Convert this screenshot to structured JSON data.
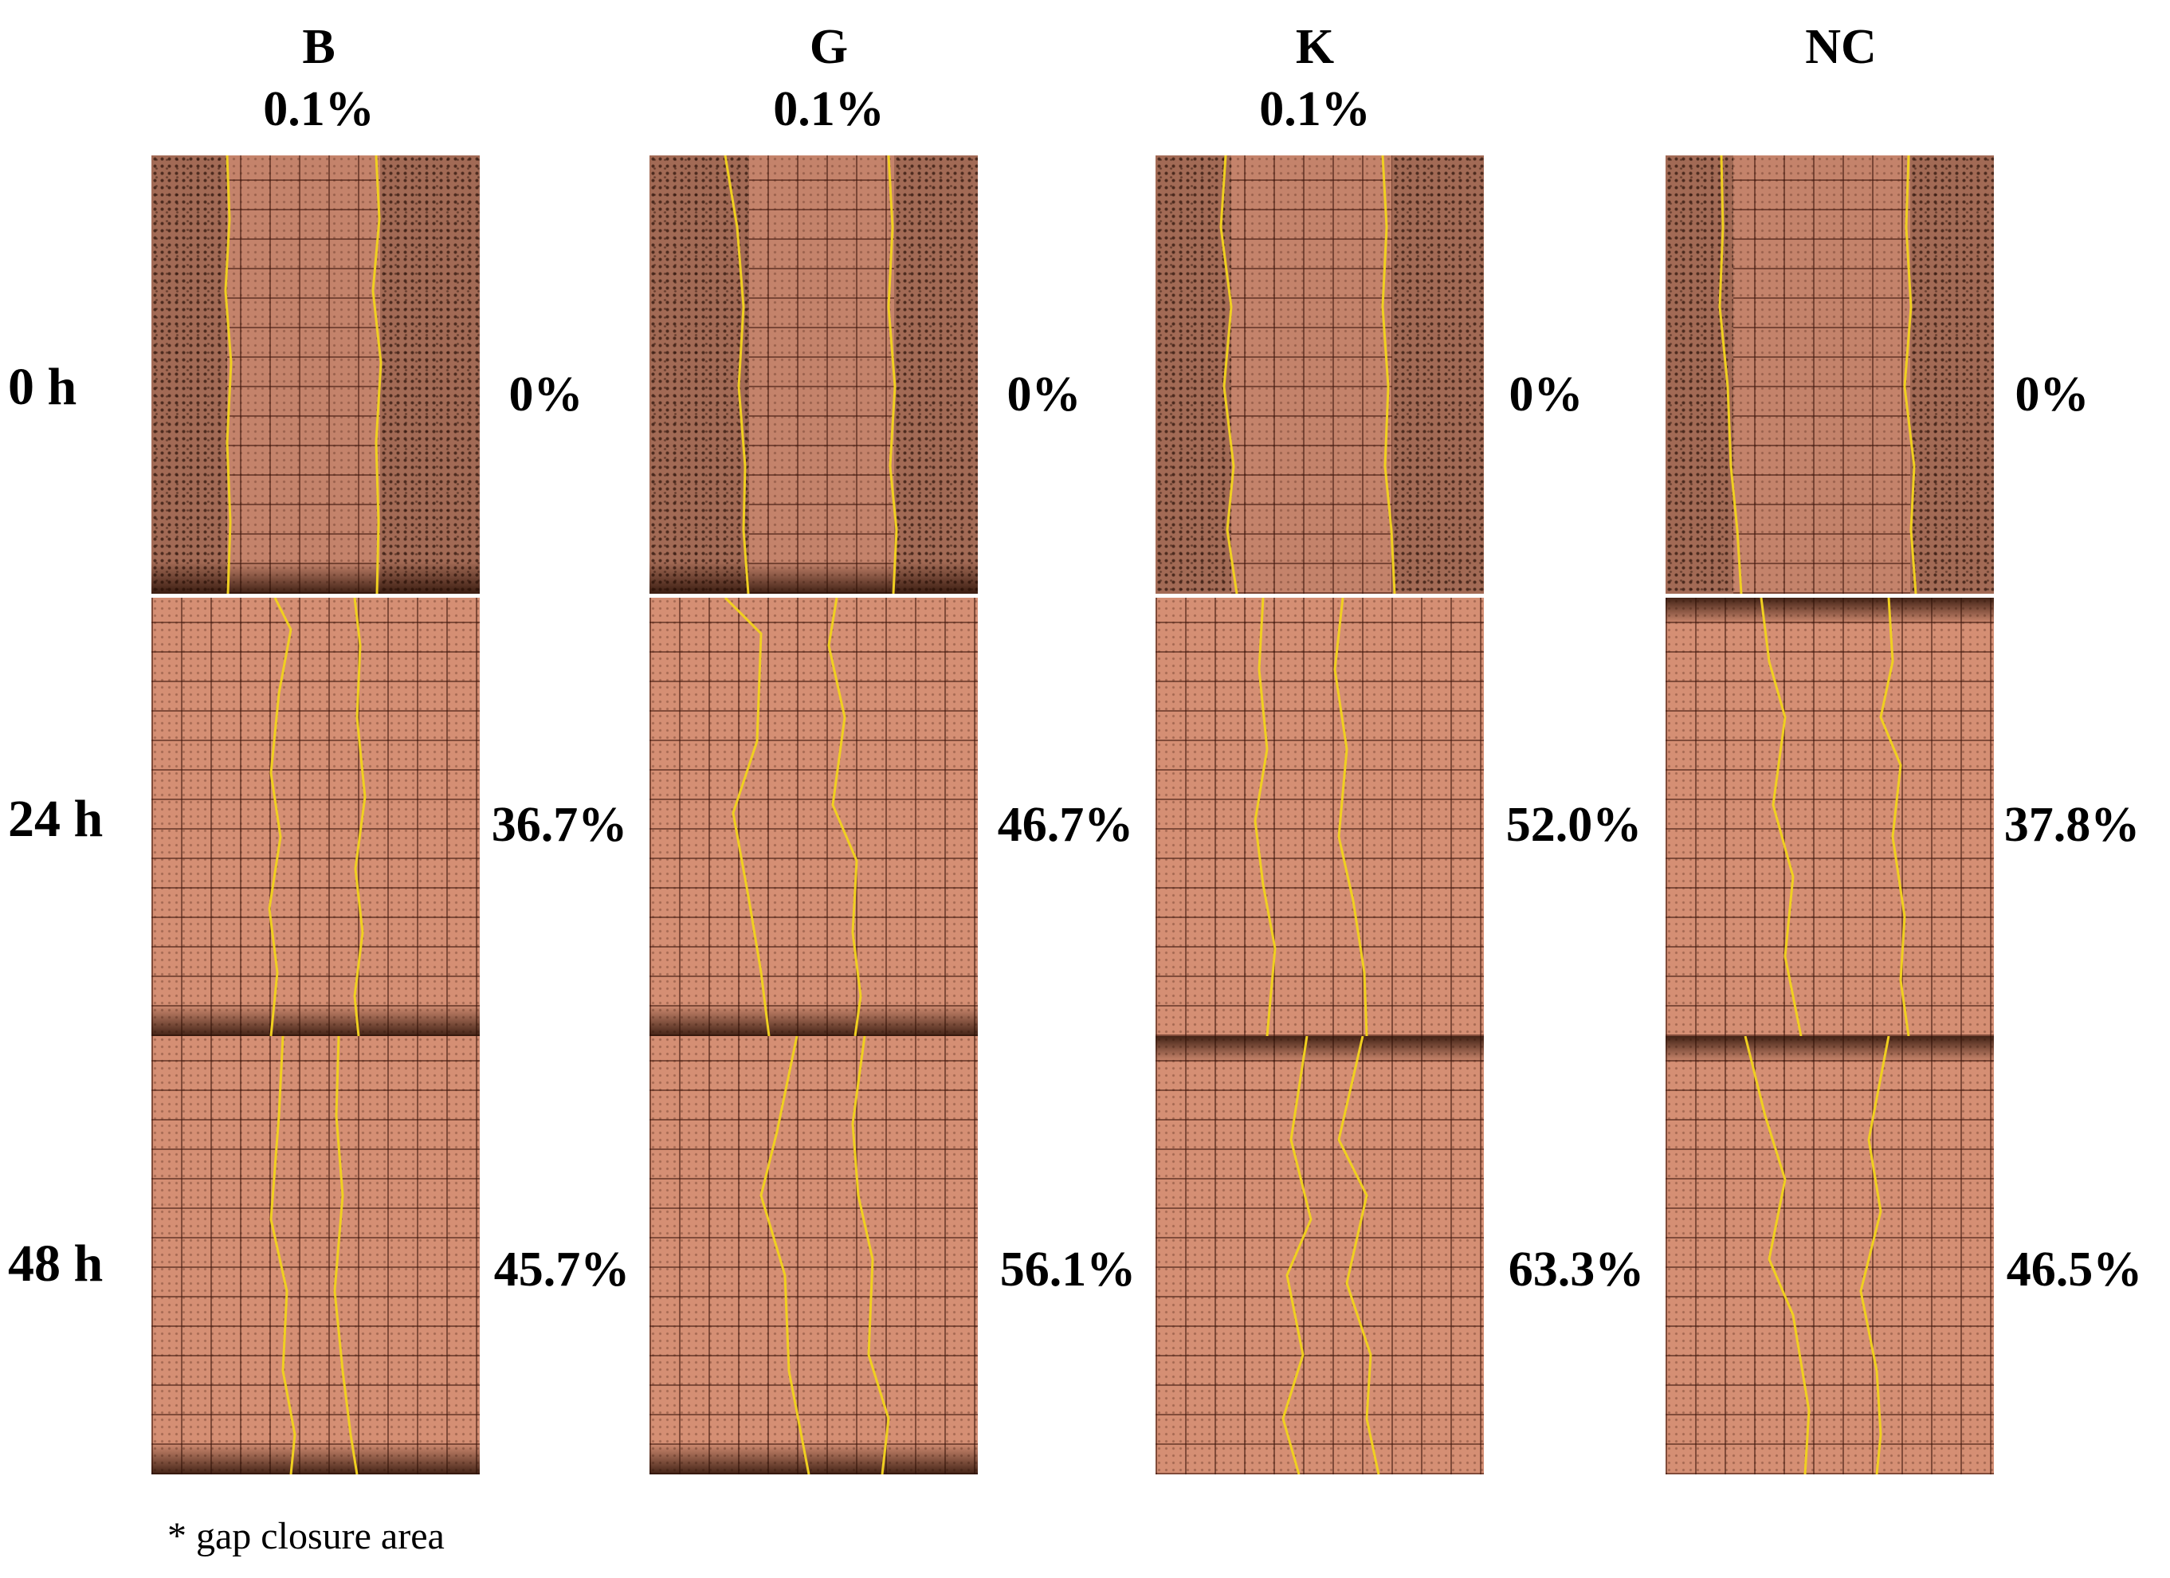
{
  "columns": [
    {
      "name": "B",
      "sub": "0.1%"
    },
    {
      "name": "G",
      "sub": "0.1%"
    },
    {
      "name": "K",
      "sub": "0.1%"
    },
    {
      "name": "NC",
      "sub": ""
    }
  ],
  "rows": [
    "0 h",
    "24 h",
    "48 h"
  ],
  "values": {
    "0h": [
      "0%",
      "0%",
      "0%",
      "0%"
    ],
    "24h": [
      "36.7%",
      "46.7%",
      "52.0%",
      "37.8%"
    ],
    "48h": [
      "45.7%",
      "56.1%",
      "63.3%",
      "46.5%"
    ]
  },
  "footnote": "* gap closure area",
  "colors": {
    "boundary_line": "#f0d020",
    "panel_bg": "#d58f74"
  }
}
